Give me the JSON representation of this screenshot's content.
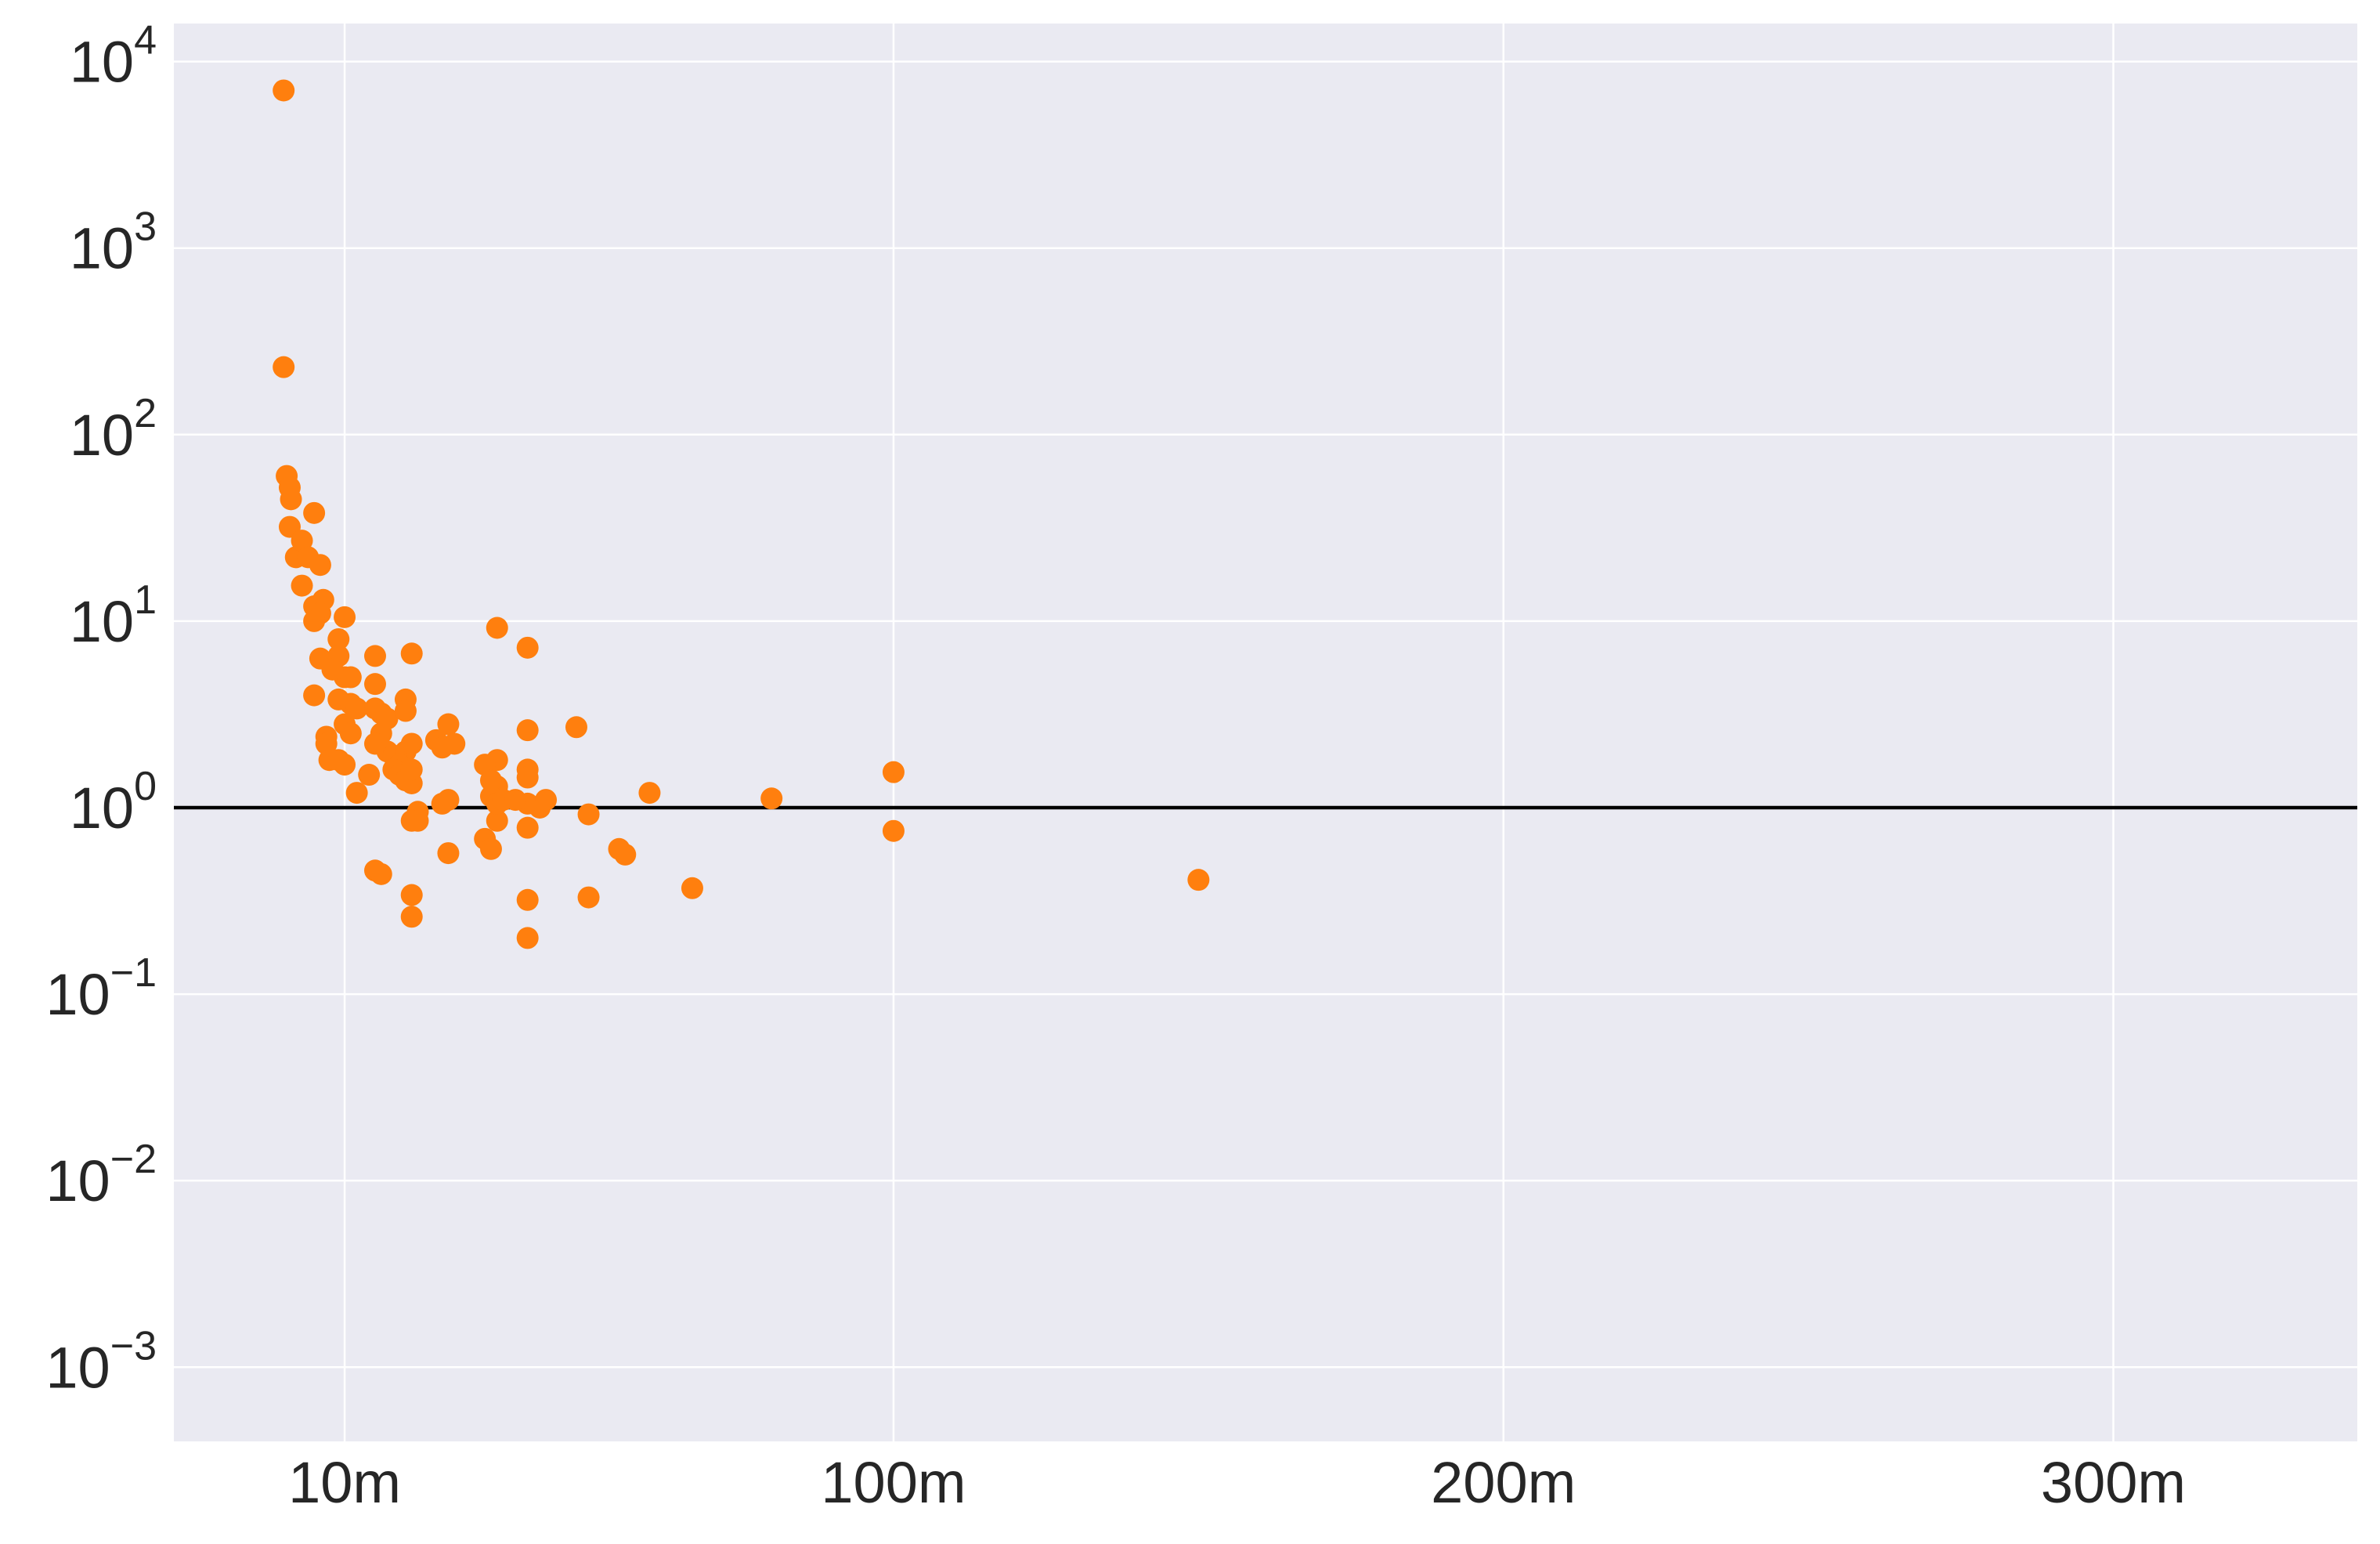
{
  "chart_data": {
    "type": "scatter",
    "title": "",
    "xlabel": "",
    "ylabel": "",
    "x_scale": "linear",
    "y_scale": "log",
    "xlim": [
      -18,
      340
    ],
    "ylim": [
      0.0004,
      16000
    ],
    "grid": true,
    "legend": "none",
    "colors": {
      "background": "#EAEAF2",
      "grid": "#FFFFFF",
      "marker": "#FF7F0E",
      "reference_line": "#000000",
      "text": "#262626"
    },
    "x_ticks": [
      {
        "value": 10,
        "label": "10m"
      },
      {
        "value": 100,
        "label": "100m"
      },
      {
        "value": 200,
        "label": "200m"
      },
      {
        "value": 300,
        "label": "300m"
      }
    ],
    "y_ticks": [
      {
        "value": 0.001,
        "base": "10",
        "exp": "−3"
      },
      {
        "value": 0.01,
        "base": "10",
        "exp": "−2"
      },
      {
        "value": 0.1,
        "base": "10",
        "exp": "−1"
      },
      {
        "value": 1,
        "base": "10",
        "exp": "0"
      },
      {
        "value": 10,
        "base": "10",
        "exp": "1"
      },
      {
        "value": 100,
        "base": "10",
        "exp": "2"
      },
      {
        "value": 1000,
        "base": "10",
        "exp": "3"
      },
      {
        "value": 10000,
        "base": "10",
        "exp": "4"
      }
    ],
    "reference_line": {
      "y": 1
    },
    "series": [
      {
        "points": [
          [
            0.0,
            7000
          ],
          [
            0.0,
            230
          ],
          [
            0.5,
            60
          ],
          [
            1.0,
            52
          ],
          [
            1.2,
            45
          ],
          [
            1.0,
            32
          ],
          [
            2.0,
            22
          ],
          [
            3.0,
            27
          ],
          [
            4.0,
            22
          ],
          [
            6.0,
            20
          ],
          [
            5.0,
            38
          ],
          [
            3.0,
            15.5
          ],
          [
            6.5,
            13
          ],
          [
            5.0,
            12
          ],
          [
            6.0,
            11
          ],
          [
            5.0,
            10
          ],
          [
            6.0,
            6.3
          ],
          [
            5.0,
            4.0
          ],
          [
            10.0,
            10.5
          ],
          [
            9.0,
            8.0
          ],
          [
            9.0,
            6.5
          ],
          [
            10.0,
            5.0
          ],
          [
            11.0,
            5.0
          ],
          [
            8.0,
            5.5
          ],
          [
            9.0,
            3.8
          ],
          [
            11.0,
            3.6
          ],
          [
            12.0,
            3.4
          ],
          [
            10.0,
            2.8
          ],
          [
            11.0,
            2.5
          ],
          [
            7.0,
            2.4
          ],
          [
            7.0,
            2.2
          ],
          [
            7.5,
            1.8
          ],
          [
            9.0,
            1.8
          ],
          [
            10.0,
            1.7
          ],
          [
            12.0,
            1.2
          ],
          [
            15.0,
            6.5
          ],
          [
            15.0,
            4.6
          ],
          [
            15.0,
            3.4
          ],
          [
            16.0,
            3.2
          ],
          [
            17.0,
            3.0
          ],
          [
            16.0,
            2.5
          ],
          [
            15.0,
            2.2
          ],
          [
            17.0,
            2.0
          ],
          [
            18.0,
            1.9
          ],
          [
            20.0,
            3.8
          ],
          [
            20.0,
            3.3
          ],
          [
            20.0,
            2.0
          ],
          [
            19.0,
            1.7
          ],
          [
            18.0,
            1.6
          ],
          [
            19.0,
            1.5
          ],
          [
            20.0,
            1.4
          ],
          [
            21.0,
            1.35
          ],
          [
            14.0,
            1.5
          ],
          [
            21.0,
            6.7
          ],
          [
            21.0,
            2.2
          ],
          [
            21.0,
            1.6
          ],
          [
            22.0,
            0.95
          ],
          [
            21.0,
            0.85
          ],
          [
            22.0,
            0.85
          ],
          [
            15.0,
            0.46
          ],
          [
            16.0,
            0.44
          ],
          [
            21.0,
            0.34
          ],
          [
            21.0,
            0.26
          ],
          [
            25.0,
            2.3
          ],
          [
            27.0,
            2.8
          ],
          [
            26.0,
            2.1
          ],
          [
            28.0,
            2.2
          ],
          [
            27.0,
            1.1
          ],
          [
            26.0,
            1.05
          ],
          [
            27.0,
            0.57
          ],
          [
            35.0,
            9.2
          ],
          [
            35.0,
            1.8
          ],
          [
            35.0,
            1.3
          ],
          [
            35.0,
            0.85
          ],
          [
            33.0,
            1.7
          ],
          [
            34.0,
            1.4
          ],
          [
            34.0,
            1.15
          ],
          [
            33.0,
            0.68
          ],
          [
            35.0,
            1.05
          ],
          [
            34.0,
            0.6
          ],
          [
            36.0,
            1.1
          ],
          [
            40.0,
            7.2
          ],
          [
            40.0,
            2.6
          ],
          [
            40.0,
            1.6
          ],
          [
            40.0,
            1.45
          ],
          [
            40.0,
            1.05
          ],
          [
            40.0,
            0.78
          ],
          [
            40.0,
            0.32
          ],
          [
            40.0,
            0.2
          ],
          [
            38.0,
            1.1
          ],
          [
            42.0,
            1.0
          ],
          [
            43.0,
            1.1
          ],
          [
            48.0,
            2.7
          ],
          [
            50.0,
            0.92
          ],
          [
            50.0,
            0.33
          ],
          [
            55.0,
            0.6
          ],
          [
            56.0,
            0.56
          ],
          [
            60.0,
            1.2
          ],
          [
            67.0,
            0.37
          ],
          [
            80.0,
            1.12
          ],
          [
            100.0,
            1.55
          ],
          [
            100.0,
            0.75
          ],
          [
            150.0,
            0.41
          ]
        ]
      }
    ]
  }
}
